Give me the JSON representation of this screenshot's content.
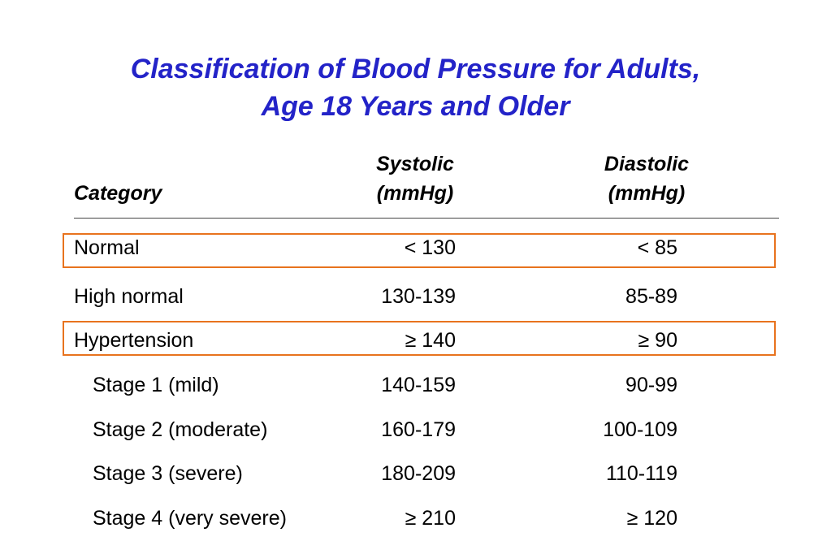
{
  "title": {
    "line1": "Classification of Blood Pressure for Adults,",
    "line2": "Age 18 Years and Older"
  },
  "table": {
    "headers": {
      "category": "Category",
      "systolic_line1": "Systolic",
      "systolic_line2": "(mmHg)",
      "diastolic_line1": "Diastolic",
      "diastolic_line2": "(mmHg)"
    },
    "rows": [
      {
        "category": "Normal",
        "systolic": "< 130",
        "diastolic": "< 85",
        "highlighted": true
      },
      {
        "category": "High normal",
        "systolic": "130-139",
        "diastolic": "85-89"
      },
      {
        "category": "Hypertension",
        "systolic": "≥ 140",
        "diastolic": "≥ 90",
        "highlighted": true
      },
      {
        "category": "Stage 1 (mild)",
        "systolic": "140-159",
        "diastolic": "90-99"
      },
      {
        "category": "Stage 2 (moderate)",
        "systolic": "160-179",
        "diastolic": "100-109"
      },
      {
        "category": "Stage 3 (severe)",
        "systolic": "180-209",
        "diastolic": "110-119"
      },
      {
        "category": "Stage 4 (very severe)",
        "systolic": "≥ 210",
        "diastolic": "≥ 120"
      }
    ]
  },
  "colors": {
    "title": "#2323c8",
    "highlight_border": "#e8731e"
  }
}
